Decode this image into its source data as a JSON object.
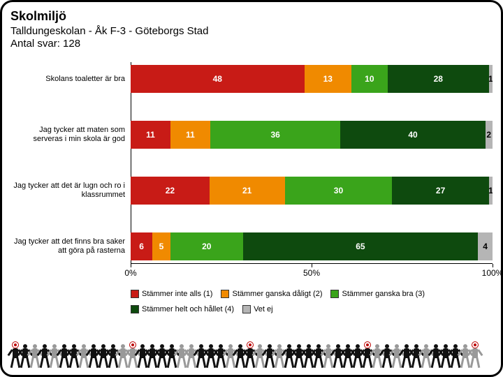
{
  "title": "Skolmiljö",
  "subtitle": "Talldungeskolan - Åk F-3 - Göteborgs Stad",
  "count_label": "Antal svar: 128",
  "chart": {
    "type": "stacked-bar-horizontal",
    "x_axis": {
      "min": 0,
      "max": 100,
      "ticks": [
        0,
        50,
        100
      ],
      "labels": [
        "0%",
        "50%",
        "100%"
      ]
    },
    "categories": [
      {
        "label": "Skolans toaletter är bra",
        "segments": [
          {
            "value": 48,
            "cat": 0
          },
          {
            "value": 13,
            "cat": 1
          },
          {
            "value": 10,
            "cat": 2
          },
          {
            "value": 28,
            "cat": 3
          },
          {
            "value": 1,
            "cat": 4
          }
        ]
      },
      {
        "label": "Jag tycker att maten som serveras i min skola är god",
        "segments": [
          {
            "value": 11,
            "cat": 0
          },
          {
            "value": 11,
            "cat": 1
          },
          {
            "value": 36,
            "cat": 2
          },
          {
            "value": 40,
            "cat": 3
          },
          {
            "value": 2,
            "cat": 4
          }
        ]
      },
      {
        "label": "Jag tycker att det är lugn och ro i klassrummet",
        "segments": [
          {
            "value": 22,
            "cat": 0
          },
          {
            "value": 21,
            "cat": 1
          },
          {
            "value": 30,
            "cat": 2
          },
          {
            "value": 27,
            "cat": 3
          },
          {
            "value": 1,
            "cat": 4
          }
        ]
      },
      {
        "label": "Jag tycker att det finns bra saker att göra på rasterna",
        "segments": [
          {
            "value": 6,
            "cat": 0
          },
          {
            "value": 5,
            "cat": 1
          },
          {
            "value": 20,
            "cat": 2
          },
          {
            "value": 65,
            "cat": 3
          },
          {
            "value": 4,
            "cat": 4
          }
        ]
      }
    ],
    "legend": [
      {
        "label": "Stämmer inte alls (1)",
        "color": "#c81b16"
      },
      {
        "label": "Stämmer ganska dåligt (2)",
        "color": "#f08a00"
      },
      {
        "label": "Stämmer ganska bra (3)",
        "color": "#3aa41b"
      },
      {
        "label": "Stämmer helt och hållet (4)",
        "color": "#0e4a0e"
      },
      {
        "label": "Vet ej",
        "color": "#b5b5b5"
      }
    ],
    "label_fontsize": 11,
    "value_fontsize": 12,
    "background_color": "#ffffff",
    "axis_color": "#000000"
  },
  "footer_silhouettes": {
    "count": 48,
    "target_indices": [
      0,
      12,
      24,
      36,
      47
    ]
  }
}
